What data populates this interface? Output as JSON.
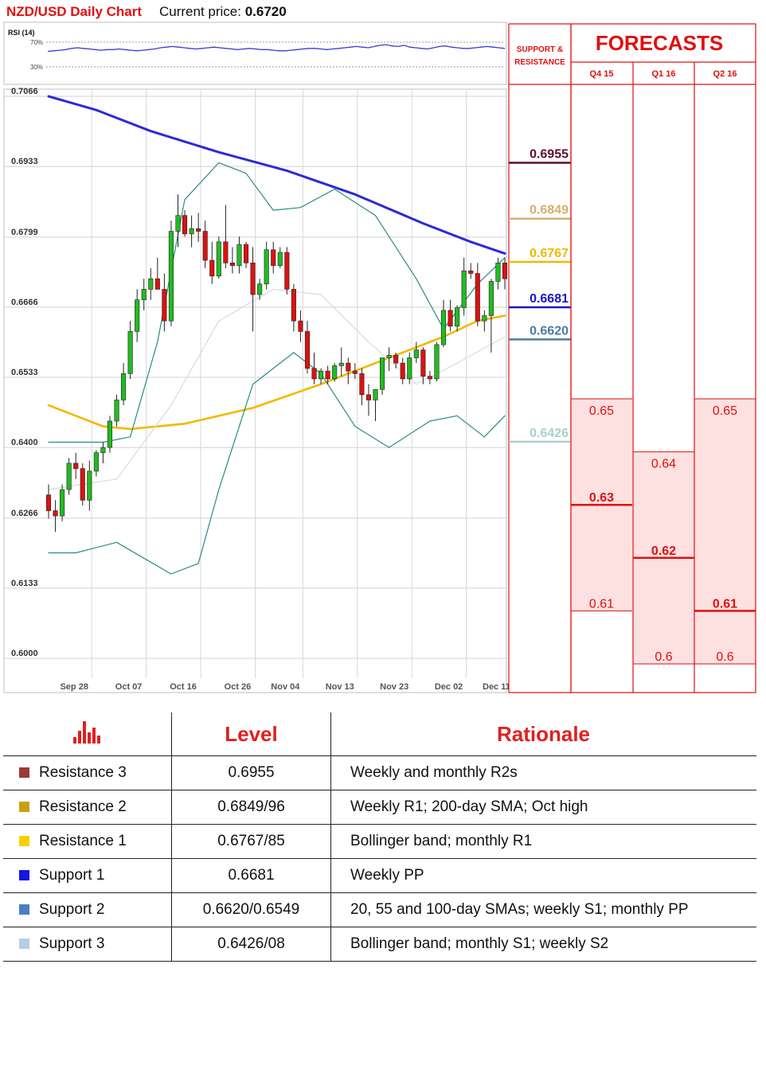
{
  "header": {
    "title": "NZD/USD Daily Chart",
    "price_label": "Current price:",
    "price_value": "0.6720"
  },
  "rsi_panel": {
    "label": "RSI (14)",
    "level_high": "70%",
    "level_low": "30%",
    "values": [
      55,
      56,
      57,
      58,
      60,
      61,
      60,
      59,
      58,
      57,
      58,
      58,
      59,
      58,
      57,
      56,
      57,
      58,
      59,
      61,
      62,
      63,
      62,
      61,
      60,
      59,
      60,
      61,
      62,
      61,
      60,
      59,
      58,
      59,
      60,
      59,
      58,
      58,
      57,
      56,
      56,
      57,
      58,
      59,
      60,
      60,
      59,
      58,
      59,
      60,
      61,
      62,
      63,
      62,
      61,
      63,
      65,
      66,
      64,
      63,
      65,
      62,
      61,
      60,
      59,
      61,
      63,
      64,
      62,
      61,
      60,
      60,
      61,
      62,
      63,
      62,
      61,
      60
    ],
    "color": "#3a3ad8"
  },
  "colors": {
    "bull": "#22bb22",
    "bear": "#dd1111",
    "sma_200": "#2b2bd6",
    "sma_55": "#f2b800",
    "bollinger": "#2a8a86",
    "sma_20": "#d6dcd6",
    "forecast_accent": "#e01010",
    "forecast_fill": "#fde0e0"
  },
  "chart_data": {
    "type": "candlestick",
    "title": "NZD/USD Daily Chart",
    "y_ticks": [
      "0.7066",
      "0.6933",
      "0.6799",
      "0.6666",
      "0.6533",
      "0.6400",
      "0.6266",
      "0.6133",
      "0.6000"
    ],
    "ylim": [
      0.6,
      0.7066
    ],
    "x_ticks": [
      "Sep 28",
      "Oct 07",
      "Oct 16",
      "Oct 26",
      "Nov 04",
      "Nov 13",
      "Nov 23",
      "Dec 02",
      "Dec 11"
    ],
    "candles": [
      [
        0.631,
        0.633,
        0.6265,
        0.628
      ],
      [
        0.628,
        0.63,
        0.624,
        0.627
      ],
      [
        0.627,
        0.633,
        0.626,
        0.632
      ],
      [
        0.632,
        0.638,
        0.631,
        0.637
      ],
      [
        0.637,
        0.639,
        0.634,
        0.636
      ],
      [
        0.636,
        0.637,
        0.629,
        0.63
      ],
      [
        0.63,
        0.6375,
        0.628,
        0.6355
      ],
      [
        0.6355,
        0.6395,
        0.6345,
        0.639
      ],
      [
        0.639,
        0.641,
        0.637,
        0.64
      ],
      [
        0.64,
        0.646,
        0.639,
        0.645
      ],
      [
        0.645,
        0.65,
        0.644,
        0.649
      ],
      [
        0.649,
        0.656,
        0.648,
        0.654
      ],
      [
        0.654,
        0.664,
        0.653,
        0.662
      ],
      [
        0.662,
        0.67,
        0.66,
        0.668
      ],
      [
        0.668,
        0.672,
        0.666,
        0.67
      ],
      [
        0.67,
        0.674,
        0.668,
        0.672
      ],
      [
        0.672,
        0.676,
        0.67,
        0.67
      ],
      [
        0.67,
        0.673,
        0.662,
        0.664
      ],
      [
        0.664,
        0.683,
        0.663,
        0.681
      ],
      [
        0.681,
        0.688,
        0.678,
        0.684
      ],
      [
        0.684,
        0.685,
        0.68,
        0.6805
      ],
      [
        0.6805,
        0.684,
        0.678,
        0.6815
      ],
      [
        0.6815,
        0.6845,
        0.679,
        0.681
      ],
      [
        0.681,
        0.683,
        0.674,
        0.6755
      ],
      [
        0.6755,
        0.679,
        0.671,
        0.6725
      ],
      [
        0.6725,
        0.68,
        0.672,
        0.679
      ],
      [
        0.679,
        0.686,
        0.674,
        0.675
      ],
      [
        0.675,
        0.678,
        0.673,
        0.6745
      ],
      [
        0.6745,
        0.68,
        0.673,
        0.6785
      ],
      [
        0.6785,
        0.679,
        0.674,
        0.675
      ],
      [
        0.675,
        0.678,
        0.662,
        0.669
      ],
      [
        0.669,
        0.672,
        0.668,
        0.671
      ],
      [
        0.671,
        0.679,
        0.67,
        0.6775
      ],
      [
        0.6775,
        0.679,
        0.673,
        0.6745
      ],
      [
        0.6745,
        0.678,
        0.674,
        0.677
      ],
      [
        0.677,
        0.678,
        0.669,
        0.67
      ],
      [
        0.67,
        0.671,
        0.662,
        0.664
      ],
      [
        0.664,
        0.666,
        0.66,
        0.662
      ],
      [
        0.662,
        0.664,
        0.654,
        0.655
      ],
      [
        0.655,
        0.658,
        0.652,
        0.653
      ],
      [
        0.653,
        0.655,
        0.652,
        0.6545
      ],
      [
        0.6545,
        0.6555,
        0.652,
        0.653
      ],
      [
        0.653,
        0.656,
        0.6525,
        0.6555
      ],
      [
        0.6555,
        0.659,
        0.6535,
        0.656
      ],
      [
        0.656,
        0.657,
        0.652,
        0.6545
      ],
      [
        0.6545,
        0.656,
        0.653,
        0.654
      ],
      [
        0.654,
        0.655,
        0.648,
        0.65
      ],
      [
        0.65,
        0.652,
        0.646,
        0.649
      ],
      [
        0.649,
        0.651,
        0.645,
        0.651
      ],
      [
        0.651,
        0.657,
        0.65,
        0.657
      ],
      [
        0.657,
        0.659,
        0.6545,
        0.6575
      ],
      [
        0.6575,
        0.658,
        0.655,
        0.656
      ],
      [
        0.656,
        0.657,
        0.652,
        0.653
      ],
      [
        0.653,
        0.658,
        0.652,
        0.657
      ],
      [
        0.657,
        0.66,
        0.656,
        0.6585
      ],
      [
        0.6585,
        0.659,
        0.652,
        0.6535
      ],
      [
        0.6535,
        0.6545,
        0.652,
        0.653
      ],
      [
        0.653,
        0.66,
        0.6525,
        0.6595
      ],
      [
        0.6595,
        0.668,
        0.659,
        0.666
      ],
      [
        0.666,
        0.668,
        0.662,
        0.663
      ],
      [
        0.663,
        0.667,
        0.662,
        0.6665
      ],
      [
        0.6665,
        0.676,
        0.665,
        0.6735
      ],
      [
        0.6735,
        0.675,
        0.672,
        0.673
      ],
      [
        0.673,
        0.675,
        0.663,
        0.664
      ],
      [
        0.664,
        0.666,
        0.662,
        0.665
      ],
      [
        0.665,
        0.672,
        0.658,
        0.6715
      ],
      [
        0.6715,
        0.676,
        0.67,
        0.675
      ],
      [
        0.675,
        0.676,
        0.67,
        0.672
      ]
    ],
    "indicators": [
      {
        "label": "200-day SMA",
        "color": "#2b2bd6",
        "values": [
          [
            0,
            0.7066
          ],
          [
            7,
            0.704
          ],
          [
            15,
            0.7
          ],
          [
            25,
            0.696
          ],
          [
            35,
            0.6925
          ],
          [
            45,
            0.688
          ],
          [
            55,
            0.6825
          ],
          [
            62,
            0.679
          ],
          [
            67,
            0.6768
          ]
        ]
      },
      {
        "label": "55-day SMA",
        "color": "#f2b800",
        "values": [
          [
            0,
            0.648
          ],
          [
            8,
            0.644
          ],
          [
            12,
            0.6435
          ],
          [
            20,
            0.6445
          ],
          [
            30,
            0.6475
          ],
          [
            40,
            0.652
          ],
          [
            50,
            0.657
          ],
          [
            58,
            0.661
          ],
          [
            63,
            0.664
          ],
          [
            67,
            0.665
          ]
        ]
      },
      {
        "label": "Bollinger upper",
        "color": "#2a8a86",
        "values": [
          [
            0,
            0.641
          ],
          [
            8,
            0.641
          ],
          [
            12,
            0.642
          ],
          [
            16,
            0.66
          ],
          [
            20,
            0.687
          ],
          [
            25,
            0.694
          ],
          [
            29,
            0.692
          ],
          [
            33,
            0.685
          ],
          [
            37,
            0.6855
          ],
          [
            42,
            0.689
          ],
          [
            48,
            0.684
          ],
          [
            54,
            0.672
          ],
          [
            58,
            0.6625
          ],
          [
            63,
            0.671
          ],
          [
            67,
            0.676
          ]
        ]
      },
      {
        "label": "Bollinger lower",
        "color": "#2a8a86",
        "values": [
          [
            0,
            0.62
          ],
          [
            4,
            0.62
          ],
          [
            10,
            0.622
          ],
          [
            14,
            0.619
          ],
          [
            18,
            0.616
          ],
          [
            22,
            0.618
          ],
          [
            25,
            0.632
          ],
          [
            30,
            0.652
          ],
          [
            36,
            0.658
          ],
          [
            40,
            0.654
          ],
          [
            45,
            0.644
          ],
          [
            50,
            0.64
          ],
          [
            56,
            0.645
          ],
          [
            60,
            0.646
          ],
          [
            64,
            0.642
          ],
          [
            67,
            0.646
          ]
        ]
      },
      {
        "label": "20-day SMA",
        "color": "#d6dcd6",
        "values": [
          [
            0,
            0.632
          ],
          [
            10,
            0.634
          ],
          [
            18,
            0.648
          ],
          [
            25,
            0.664
          ],
          [
            33,
            0.67
          ],
          [
            40,
            0.669
          ],
          [
            47,
            0.66
          ],
          [
            54,
            0.652
          ],
          [
            60,
            0.656
          ],
          [
            67,
            0.661
          ]
        ]
      }
    ],
    "support_resistance": [
      {
        "value": "0.6955",
        "level": 0.6955,
        "color": "#5a0f2a"
      },
      {
        "value": "0.6849",
        "level": 0.6849,
        "color": "#d2b06e"
      },
      {
        "value": "0.6767",
        "level": 0.6767,
        "color": "#f2b800"
      },
      {
        "value": "0.6681",
        "level": 0.6681,
        "color": "#1717c8"
      },
      {
        "value": "0.6620",
        "level": 0.662,
        "color": "#4a7aa0"
      },
      {
        "value": "0.6426",
        "level": 0.6426,
        "color": "#a8d0cc"
      }
    ],
    "forecasts": [
      {
        "quarter": "Q4 15",
        "high": "0.65",
        "mid": "0.63",
        "low": "0.61",
        "high_v": 0.65,
        "mid_v": 0.63,
        "low_v": 0.61
      },
      {
        "quarter": "Q1 16",
        "high": "0.64",
        "mid": "0.62",
        "low": "0.6",
        "high_v": 0.64,
        "mid_v": 0.62,
        "low_v": 0.6
      },
      {
        "quarter": "Q2 16",
        "high": "0.65",
        "mid": "0.61",
        "low": "0.6",
        "high_v": 0.65,
        "mid_v": 0.61,
        "low_v": 0.6
      }
    ]
  },
  "side_panel": {
    "sr_title_1": "SUPPORT &",
    "sr_title_2": "RESISTANCE",
    "forecasts_title": "FORECASTS"
  },
  "levels_table": {
    "headers": {
      "level": "Level",
      "rationale": "Rationale"
    },
    "icon_name": "bar-chart-icon",
    "rows": [
      {
        "name": "Resistance 3",
        "color": "#9b3a3a",
        "level": "0.6955",
        "rationale": "Weekly and monthly R2s"
      },
      {
        "name": "Resistance 2",
        "color": "#c9a012",
        "level": "0.6849/96",
        "rationale": "Weekly R1; 200-day SMA; Oct high"
      },
      {
        "name": "Resistance 1",
        "color": "#f8d000",
        "level": "0.6767/85",
        "rationale": "Bollinger band; monthly R1"
      },
      {
        "name": "Support 1",
        "color": "#1414e6",
        "level": "0.6681",
        "rationale": "Weekly PP"
      },
      {
        "name": "Support 2",
        "color": "#4a7fc0",
        "level": "0.6620/0.6549",
        "rationale": "20, 55 and 100-day SMAs; weekly S1; monthly PP"
      },
      {
        "name": "Support 3",
        "color": "#b8cce4",
        "level": "0.6426/08",
        "rationale": "Bollinger band; monthly S1; weekly S2"
      }
    ]
  }
}
